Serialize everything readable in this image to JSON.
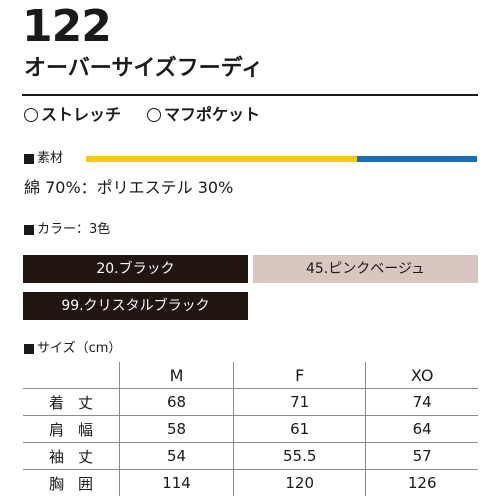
{
  "product": {
    "number": "122",
    "name": "オーバーサイズフーディ"
  },
  "features": [
    "ストレッチ",
    "マフポケット"
  ],
  "material": {
    "label": "素材",
    "composition": "綿 70%：ポリエステル 30%",
    "bar_colors": [
      "#f6c913",
      "#1d6cb3"
    ]
  },
  "colors": {
    "label": "カラー：3色",
    "items": [
      {
        "label": "20.ブラック",
        "swatch": "#21150f"
      },
      {
        "label": "45.ピンクベージュ",
        "swatch": "#d9c6c0"
      },
      {
        "label": "99.クリスタルブラック",
        "swatch": "#21150f"
      }
    ]
  },
  "sizes": {
    "label": "サイズ（cm）",
    "columns": [
      "M",
      "F",
      "XO"
    ],
    "rows": [
      {
        "name": "着丈",
        "values": [
          "68",
          "71",
          "74"
        ]
      },
      {
        "name": "肩幅",
        "values": [
          "58",
          "61",
          "64"
        ]
      },
      {
        "name": "袖丈",
        "values": [
          "54",
          "55.5",
          "57"
        ]
      },
      {
        "name": "胸囲",
        "values": [
          "114",
          "120",
          "126"
        ]
      }
    ]
  }
}
